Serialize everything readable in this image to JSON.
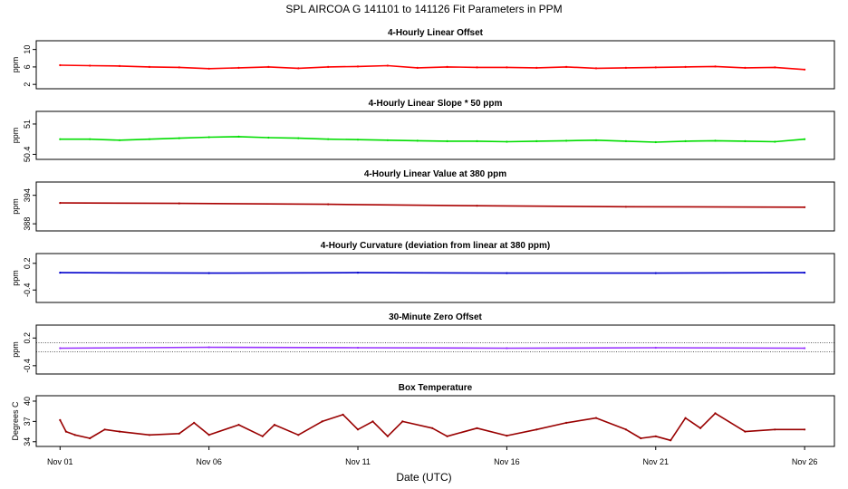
{
  "figure": {
    "title": "SPL   AIRCOA G   141101 to 141126   Fit Parameters in PPM",
    "xlabel": "Date (UTC)",
    "x_ticks": [
      "Nov 01",
      "Nov 06",
      "Nov 11",
      "Nov 16",
      "Nov 21",
      "Nov 26"
    ],
    "x_tick_days": [
      1,
      6,
      11,
      16,
      21,
      26
    ],
    "x_range": [
      0.2,
      27.0
    ]
  },
  "chart_data": [
    {
      "type": "line",
      "title": "4-Hourly Linear Offset",
      "ylabel": "ppm",
      "yticks": [
        2,
        6,
        10
      ],
      "ylim": [
        1.0,
        12.0
      ],
      "color": "#ff0000",
      "series": [
        {
          "values": [
            [
              1.0,
              6.4
            ],
            [
              2.0,
              6.3
            ],
            [
              3.0,
              6.2
            ],
            [
              4.0,
              6.0
            ],
            [
              5.0,
              5.9
            ],
            [
              6.0,
              5.6
            ],
            [
              7.0,
              5.8
            ],
            [
              8.0,
              6.0
            ],
            [
              9.0,
              5.7
            ],
            [
              10.0,
              6.0
            ],
            [
              11.0,
              6.1
            ],
            [
              12.0,
              6.3
            ],
            [
              13.0,
              5.8
            ],
            [
              14.0,
              6.0
            ],
            [
              15.0,
              5.9
            ],
            [
              16.0,
              5.9
            ],
            [
              17.0,
              5.8
            ],
            [
              18.0,
              6.0
            ],
            [
              19.0,
              5.7
            ],
            [
              20.0,
              5.8
            ],
            [
              21.0,
              5.9
            ],
            [
              22.0,
              6.0
            ],
            [
              23.0,
              6.1
            ],
            [
              24.0,
              5.8
            ],
            [
              25.0,
              5.9
            ],
            [
              26.0,
              5.4
            ]
          ]
        }
      ]
    },
    {
      "type": "line",
      "title": "4-Hourly Linear Slope * 50 ppm",
      "ylabel": "ppm",
      "yticks": [
        50.4,
        51.0
      ],
      "ylim": [
        50.3,
        51.25
      ],
      "color": "#00dd00",
      "series": [
        {
          "values": [
            [
              1.0,
              50.7
            ],
            [
              2.0,
              50.7
            ],
            [
              3.0,
              50.68
            ],
            [
              4.0,
              50.7
            ],
            [
              5.0,
              50.72
            ],
            [
              6.0,
              50.74
            ],
            [
              7.0,
              50.75
            ],
            [
              8.0,
              50.73
            ],
            [
              9.0,
              50.72
            ],
            [
              10.0,
              50.7
            ],
            [
              11.0,
              50.69
            ],
            [
              12.0,
              50.68
            ],
            [
              13.0,
              50.67
            ],
            [
              14.0,
              50.66
            ],
            [
              15.0,
              50.66
            ],
            [
              16.0,
              50.65
            ],
            [
              17.0,
              50.66
            ],
            [
              18.0,
              50.67
            ],
            [
              19.0,
              50.68
            ],
            [
              20.0,
              50.66
            ],
            [
              21.0,
              50.64
            ],
            [
              22.0,
              50.66
            ],
            [
              23.0,
              50.67
            ],
            [
              24.0,
              50.66
            ],
            [
              25.0,
              50.65
            ],
            [
              26.0,
              50.7
            ]
          ]
        }
      ]
    },
    {
      "type": "line",
      "title": "4-Hourly Linear Value at 380 ppm",
      "ylabel": "ppm",
      "yticks": [
        388,
        394
      ],
      "ylim": [
        386.5,
        396.8
      ],
      "color": "#aa0000",
      "series": [
        {
          "values": [
            [
              1.0,
              392.4
            ],
            [
              5.0,
              392.3
            ],
            [
              10.0,
              392.1
            ],
            [
              15.0,
              391.8
            ],
            [
              20.0,
              391.6
            ],
            [
              26.0,
              391.5
            ]
          ]
        }
      ]
    },
    {
      "type": "line",
      "title": "4-Hourly Curvature (deviation from linear at 380 ppm)",
      "ylabel": "ppm",
      "yticks": [
        -0.4,
        0.2
      ],
      "ylim": [
        -0.68,
        0.42
      ],
      "color": "#0000cc",
      "series": [
        {
          "values": [
            [
              1.0,
              -0.01
            ],
            [
              6.0,
              -0.02
            ],
            [
              11.0,
              -0.01
            ],
            [
              16.0,
              -0.02
            ],
            [
              21.0,
              -0.02
            ],
            [
              26.0,
              -0.01
            ]
          ]
        }
      ]
    },
    {
      "type": "line",
      "title": "30-Minute Zero Offset",
      "ylabel": "ppm",
      "yticks": [
        -0.4,
        0.2
      ],
      "ylim": [
        -0.58,
        0.48
      ],
      "color": "#9933ff",
      "ref_lines": [
        0.1,
        -0.1
      ],
      "series": [
        {
          "values": [
            [
              1.0,
              -0.02
            ],
            [
              6.0,
              0.0
            ],
            [
              11.0,
              -0.01
            ],
            [
              16.0,
              -0.02
            ],
            [
              21.0,
              -0.01
            ],
            [
              26.0,
              -0.02
            ]
          ]
        }
      ]
    },
    {
      "type": "line",
      "title": "Box Temperature",
      "ylabel": "Degrees C",
      "yticks": [
        34,
        37,
        40
      ],
      "ylim": [
        33.3,
        40.8
      ],
      "color": "#990000",
      "series": [
        {
          "values": [
            [
              1.0,
              37.2
            ],
            [
              1.2,
              35.5
            ],
            [
              1.5,
              35.0
            ],
            [
              2.0,
              34.5
            ],
            [
              2.5,
              35.8
            ],
            [
              3.0,
              35.5
            ],
            [
              4.0,
              35.0
            ],
            [
              5.0,
              35.2
            ],
            [
              5.5,
              36.8
            ],
            [
              6.0,
              35.0
            ],
            [
              7.0,
              36.5
            ],
            [
              7.8,
              34.8
            ],
            [
              8.2,
              36.5
            ],
            [
              9.0,
              35.0
            ],
            [
              9.8,
              37.0
            ],
            [
              10.5,
              38.0
            ],
            [
              11.0,
              35.8
            ],
            [
              11.5,
              37.0
            ],
            [
              12.0,
              34.8
            ],
            [
              12.5,
              37.0
            ],
            [
              13.5,
              36.0
            ],
            [
              14.0,
              34.8
            ],
            [
              15.0,
              36.0
            ],
            [
              16.0,
              34.9
            ],
            [
              17.0,
              35.8
            ],
            [
              18.0,
              36.8
            ],
            [
              19.0,
              37.5
            ],
            [
              20.0,
              35.8
            ],
            [
              20.5,
              34.5
            ],
            [
              21.0,
              34.8
            ],
            [
              21.5,
              34.2
            ],
            [
              22.0,
              37.5
            ],
            [
              22.5,
              36.0
            ],
            [
              23.0,
              38.2
            ],
            [
              24.0,
              35.5
            ],
            [
              25.0,
              35.8
            ],
            [
              26.0,
              35.8
            ]
          ]
        }
      ]
    }
  ]
}
